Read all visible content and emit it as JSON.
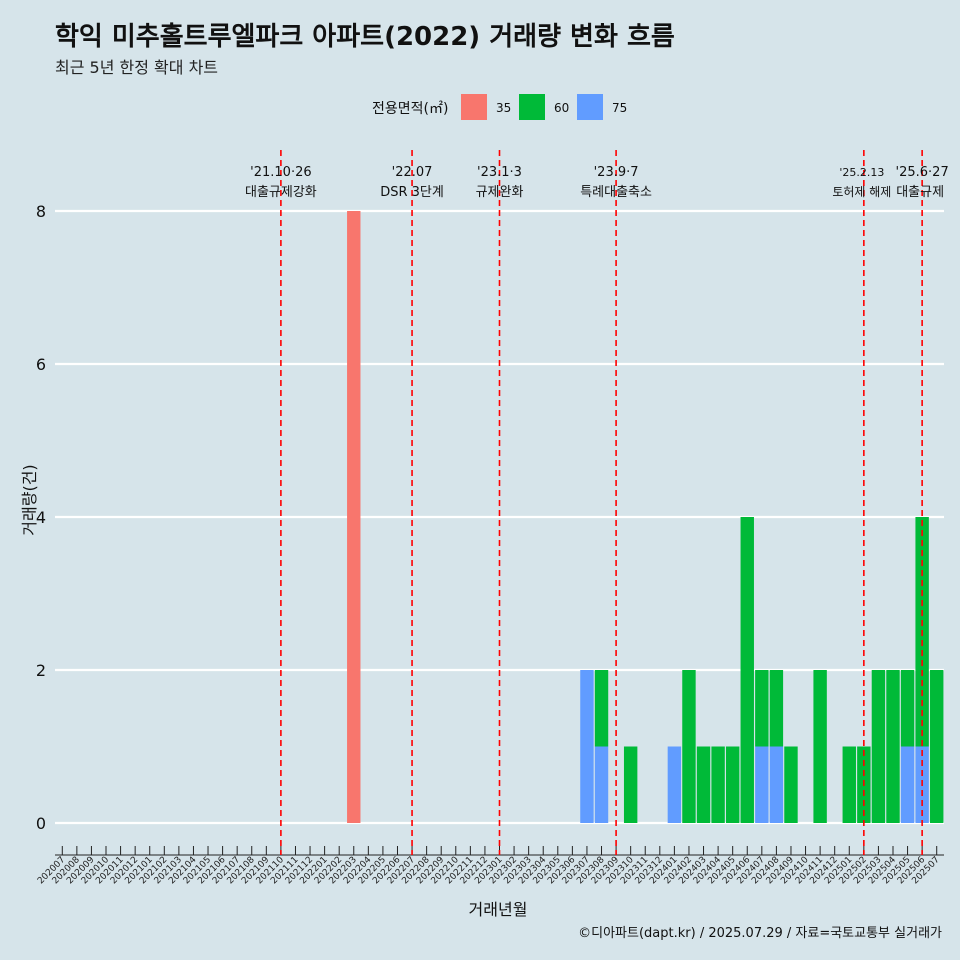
{
  "chart_data": {
    "type": "bar",
    "title": "학익 미추홀트루엘파크 아파트(2022) 거래량 변화 흐름",
    "subtitle": "최근 5년 한정 확대 차트",
    "xlabel": "거래년월",
    "ylabel": "거래량(건)",
    "ylim": [
      0,
      8
    ],
    "yticks": [
      0,
      2,
      4,
      6,
      8
    ],
    "grid": true,
    "legend": {
      "title": "전용면적(㎡)",
      "position": "top"
    },
    "categories": [
      "202007",
      "202008",
      "202009",
      "202010",
      "202011",
      "202012",
      "202101",
      "202102",
      "202103",
      "202104",
      "202105",
      "202106",
      "202107",
      "202108",
      "202109",
      "202110",
      "202111",
      "202112",
      "202201",
      "202202",
      "202203",
      "202204",
      "202205",
      "202206",
      "202207",
      "202208",
      "202209",
      "202210",
      "202211",
      "202212",
      "202301",
      "202302",
      "202303",
      "202304",
      "202305",
      "202306",
      "202307",
      "202308",
      "202309",
      "202310",
      "202311",
      "202312",
      "202401",
      "202402",
      "202403",
      "202404",
      "202405",
      "202406",
      "202407",
      "202408",
      "202409",
      "202410",
      "202411",
      "202412",
      "202501",
      "202502",
      "202503",
      "202504",
      "202505",
      "202506",
      "202507"
    ],
    "series": [
      {
        "name": "35",
        "color": "#f8766d",
        "values": [
          0,
          0,
          0,
          0,
          0,
          0,
          0,
          0,
          0,
          0,
          0,
          0,
          0,
          0,
          0,
          0,
          0,
          0,
          0,
          0,
          8,
          0,
          0,
          0,
          0,
          0,
          0,
          0,
          0,
          0,
          0,
          0,
          0,
          0,
          0,
          0,
          0,
          0,
          0,
          0,
          0,
          0,
          0,
          0,
          0,
          0,
          0,
          0,
          0,
          0,
          0,
          0,
          0,
          0,
          0,
          0,
          0,
          0,
          0,
          0,
          0
        ]
      },
      {
        "name": "60",
        "color": "#00ba38",
        "values": [
          0,
          0,
          0,
          0,
          0,
          0,
          0,
          0,
          0,
          0,
          0,
          0,
          0,
          0,
          0,
          0,
          0,
          0,
          0,
          0,
          0,
          0,
          0,
          0,
          0,
          0,
          0,
          0,
          0,
          0,
          0,
          0,
          0,
          0,
          0,
          0,
          0,
          1,
          0,
          1,
          0,
          0,
          0,
          2,
          1,
          1,
          1,
          4,
          1,
          1,
          1,
          0,
          2,
          0,
          1,
          1,
          2,
          2,
          1,
          3,
          2
        ]
      },
      {
        "name": "75",
        "color": "#619cff",
        "values": [
          0,
          0,
          0,
          0,
          0,
          0,
          0,
          0,
          0,
          0,
          0,
          0,
          0,
          0,
          0,
          0,
          0,
          0,
          0,
          0,
          0,
          0,
          0,
          0,
          0,
          0,
          0,
          0,
          0,
          0,
          0,
          0,
          0,
          0,
          0,
          0,
          2,
          1,
          0,
          0,
          0,
          0,
          1,
          0,
          0,
          0,
          0,
          0,
          1,
          1,
          0,
          0,
          0,
          0,
          0,
          0,
          0,
          0,
          1,
          1,
          0
        ]
      }
    ],
    "annotations": [
      {
        "x": "202110",
        "date": "'21.10·26",
        "label": "대출규제강화"
      },
      {
        "x": "202207",
        "date": "'22.07",
        "label": "DSR 3단계"
      },
      {
        "x": "202301",
        "date": "'23.1·3",
        "label": "규제완화"
      },
      {
        "x": "202309",
        "date": "'23.9·7",
        "label": "특례대출축소"
      },
      {
        "x": "202502",
        "date": "'25.2.13",
        "label": "토허제 해제"
      },
      {
        "x": "202506",
        "date": "'25.6·27",
        "label": "대출규제"
      }
    ],
    "caption": "©디아파트(dapt.kr) / 2025.07.29 / 자료=국토교통부 실거래가"
  }
}
